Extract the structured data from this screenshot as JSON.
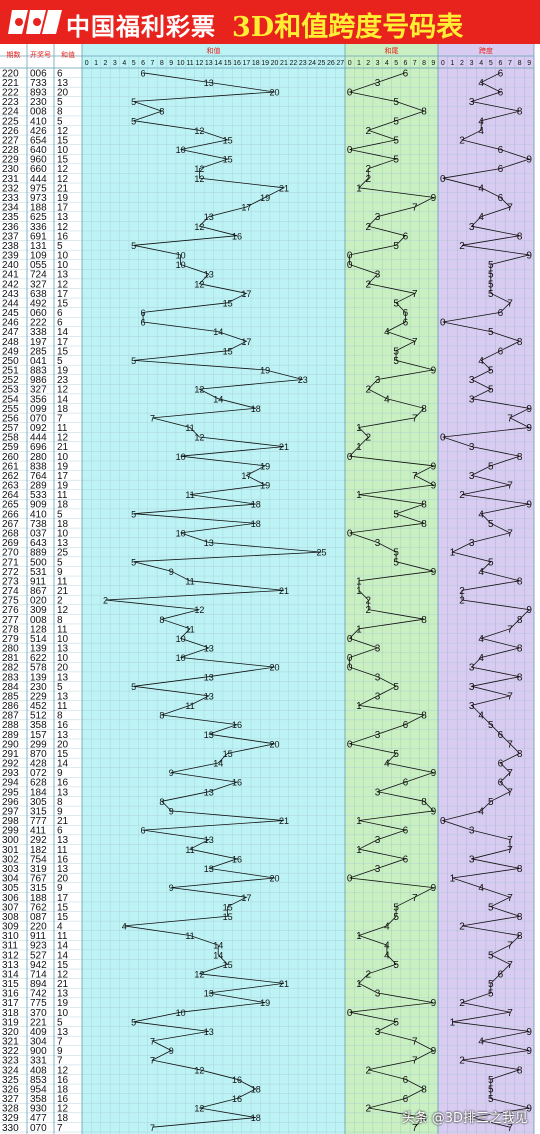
{
  "header": {
    "brand": "中国福利彩票",
    "title": "3D和值跨度号码表"
  },
  "columns": {
    "period": "期数",
    "number": "开奖号",
    "sum": "和值",
    "sum_zone": "和值",
    "tail_zone": "和尾",
    "span_zone": "跨度"
  },
  "watermark": "头条 @3D排三之我见",
  "colors": {
    "header_bg": "#e8231d",
    "title_yellow": "#ffee33",
    "sum_zone_bg": "#bdf3f5",
    "tail_zone_bg": "#c9efc3",
    "span_zone_bg": "#d8ccf0",
    "left_bg": "#ffffff",
    "red": "#e8201a",
    "blue": "#1533d6",
    "black": "#111111"
  },
  "chart_data": {
    "type": "table",
    "sum_axis": [
      0,
      27
    ],
    "tail_axis": [
      0,
      9
    ],
    "span_axis": [
      0,
      9
    ],
    "rows": [
      {
        "period": "220",
        "number": "006",
        "sum": 6,
        "tail": 6,
        "span": 6
      },
      {
        "period": "221",
        "number": "733",
        "sum": 13,
        "tail": 3,
        "span": 4
      },
      {
        "period": "222",
        "number": "893",
        "sum": 20,
        "tail": 0,
        "span": 6
      },
      {
        "period": "223",
        "number": "230",
        "sum": 5,
        "tail": 5,
        "span": 3
      },
      {
        "period": "224",
        "number": "008",
        "sum": 8,
        "tail": 8,
        "span": 8
      },
      {
        "period": "225",
        "number": "410",
        "sum": 5,
        "tail": 5,
        "span": 4
      },
      {
        "period": "226",
        "number": "426",
        "sum": 12,
        "tail": 2,
        "span": 4
      },
      {
        "period": "227",
        "number": "654",
        "sum": 15,
        "tail": 5,
        "span": 2
      },
      {
        "period": "228",
        "number": "640",
        "sum": 10,
        "tail": 0,
        "span": 6
      },
      {
        "period": "229",
        "number": "960",
        "sum": 15,
        "tail": 5,
        "span": 9
      },
      {
        "period": "230",
        "number": "660",
        "sum": 12,
        "tail": 2,
        "span": 6
      },
      {
        "period": "231",
        "number": "444",
        "sum": 12,
        "tail": 2,
        "span": 0
      },
      {
        "period": "232",
        "number": "975",
        "sum": 21,
        "tail": 1,
        "span": 4
      },
      {
        "period": "233",
        "number": "973",
        "sum": 19,
        "tail": 9,
        "span": 6
      },
      {
        "period": "234",
        "number": "188",
        "sum": 17,
        "tail": 7,
        "span": 7
      },
      {
        "period": "235",
        "number": "625",
        "sum": 13,
        "tail": 3,
        "span": 4
      },
      {
        "period": "236",
        "number": "336",
        "sum": 12,
        "tail": 2,
        "span": 3
      },
      {
        "period": "237",
        "number": "691",
        "sum": 16,
        "tail": 6,
        "span": 8
      },
      {
        "period": "238",
        "number": "131",
        "sum": 5,
        "tail": 5,
        "span": 2
      },
      {
        "period": "239",
        "number": "109",
        "sum": 10,
        "tail": 0,
        "span": 9
      },
      {
        "period": "240",
        "number": "055",
        "sum": 10,
        "tail": 0,
        "span": 5
      },
      {
        "period": "241",
        "number": "724",
        "sum": 13,
        "tail": 3,
        "span": 5
      },
      {
        "period": "242",
        "number": "327",
        "sum": 12,
        "tail": 2,
        "span": 5
      },
      {
        "period": "243",
        "number": "638",
        "sum": 17,
        "tail": 7,
        "span": 5
      },
      {
        "period": "244",
        "number": "492",
        "sum": 15,
        "tail": 5,
        "span": 7
      },
      {
        "period": "245",
        "number": "060",
        "sum": 6,
        "tail": 6,
        "span": 6
      },
      {
        "period": "246",
        "number": "222",
        "sum": 6,
        "tail": 6,
        "span": 0
      },
      {
        "period": "247",
        "number": "338",
        "sum": 14,
        "tail": 4,
        "span": 5
      },
      {
        "period": "248",
        "number": "197",
        "sum": 17,
        "tail": 7,
        "span": 8
      },
      {
        "period": "249",
        "number": "285",
        "sum": 15,
        "tail": 5,
        "span": 6
      },
      {
        "period": "250",
        "number": "041",
        "sum": 5,
        "tail": 5,
        "span": 4
      },
      {
        "period": "251",
        "number": "883",
        "sum": 19,
        "tail": 9,
        "span": 5
      },
      {
        "period": "252",
        "number": "986",
        "sum": 23,
        "tail": 3,
        "span": 3
      },
      {
        "period": "253",
        "number": "327",
        "sum": 12,
        "tail": 2,
        "span": 5
      },
      {
        "period": "254",
        "number": "356",
        "sum": 14,
        "tail": 4,
        "span": 3
      },
      {
        "period": "255",
        "number": "099",
        "sum": 18,
        "tail": 8,
        "span": 9
      },
      {
        "period": "256",
        "number": "070",
        "sum": 7,
        "tail": 7,
        "span": 7
      },
      {
        "period": "257",
        "number": "092",
        "sum": 11,
        "tail": 1,
        "span": 9
      },
      {
        "period": "258",
        "number": "444",
        "sum": 12,
        "tail": 2,
        "span": 0
      },
      {
        "period": "259",
        "number": "696",
        "sum": 21,
        "tail": 1,
        "span": 3
      },
      {
        "period": "260",
        "number": "280",
        "sum": 10,
        "tail": 0,
        "span": 8
      },
      {
        "period": "261",
        "number": "838",
        "sum": 19,
        "tail": 9,
        "span": 5
      },
      {
        "period": "262",
        "number": "764",
        "sum": 17,
        "tail": 7,
        "span": 3
      },
      {
        "period": "263",
        "number": "289",
        "sum": 19,
        "tail": 9,
        "span": 7
      },
      {
        "period": "264",
        "number": "533",
        "sum": 11,
        "tail": 1,
        "span": 2
      },
      {
        "period": "265",
        "number": "909",
        "sum": 18,
        "tail": 8,
        "span": 9
      },
      {
        "period": "266",
        "number": "410",
        "sum": 5,
        "tail": 5,
        "span": 4
      },
      {
        "period": "267",
        "number": "738",
        "sum": 18,
        "tail": 8,
        "span": 5
      },
      {
        "period": "268",
        "number": "037",
        "sum": 10,
        "tail": 0,
        "span": 7
      },
      {
        "period": "269",
        "number": "643",
        "sum": 13,
        "tail": 3,
        "span": 3
      },
      {
        "period": "270",
        "number": "889",
        "sum": 25,
        "tail": 5,
        "span": 1
      },
      {
        "period": "271",
        "number": "500",
        "sum": 5,
        "tail": 5,
        "span": 5
      },
      {
        "period": "272",
        "number": "531",
        "sum": 9,
        "tail": 9,
        "span": 4
      },
      {
        "period": "273",
        "number": "911",
        "sum": 11,
        "tail": 1,
        "span": 8
      },
      {
        "period": "274",
        "number": "867",
        "sum": 21,
        "tail": 1,
        "span": 2
      },
      {
        "period": "275",
        "number": "020",
        "sum": 2,
        "tail": 2,
        "span": 2
      },
      {
        "period": "276",
        "number": "309",
        "sum": 12,
        "tail": 2,
        "span": 9
      },
      {
        "period": "277",
        "number": "008",
        "sum": 8,
        "tail": 8,
        "span": 8
      },
      {
        "period": "278",
        "number": "128",
        "sum": 11,
        "tail": 1,
        "span": 7
      },
      {
        "period": "279",
        "number": "514",
        "sum": 10,
        "tail": 0,
        "span": 4
      },
      {
        "period": "280",
        "number": "139",
        "sum": 13,
        "tail": 3,
        "span": 8
      },
      {
        "period": "281",
        "number": "622",
        "sum": 10,
        "tail": 0,
        "span": 4
      },
      {
        "period": "282",
        "number": "578",
        "sum": 20,
        "tail": 0,
        "span": 3
      },
      {
        "period": "283",
        "number": "139",
        "sum": 13,
        "tail": 3,
        "span": 8
      },
      {
        "period": "284",
        "number": "230",
        "sum": 5,
        "tail": 5,
        "span": 3
      },
      {
        "period": "285",
        "number": "229",
        "sum": 13,
        "tail": 3,
        "span": 7
      },
      {
        "period": "286",
        "number": "452",
        "sum": 11,
        "tail": 1,
        "span": 3
      },
      {
        "period": "287",
        "number": "512",
        "sum": 8,
        "tail": 8,
        "span": 4
      },
      {
        "period": "288",
        "number": "358",
        "sum": 16,
        "tail": 6,
        "span": 5
      },
      {
        "period": "289",
        "number": "157",
        "sum": 13,
        "tail": 3,
        "span": 6
      },
      {
        "period": "290",
        "number": "299",
        "sum": 20,
        "tail": 0,
        "span": 7
      },
      {
        "period": "291",
        "number": "870",
        "sum": 15,
        "tail": 5,
        "span": 8
      },
      {
        "period": "292",
        "number": "428",
        "sum": 14,
        "tail": 4,
        "span": 6
      },
      {
        "period": "293",
        "number": "072",
        "sum": 9,
        "tail": 9,
        "span": 7
      },
      {
        "period": "294",
        "number": "628",
        "sum": 16,
        "tail": 6,
        "span": 6
      },
      {
        "period": "295",
        "number": "184",
        "sum": 13,
        "tail": 3,
        "span": 7
      },
      {
        "period": "296",
        "number": "305",
        "sum": 8,
        "tail": 8,
        "span": 5
      },
      {
        "period": "297",
        "number": "315",
        "sum": 9,
        "tail": 9,
        "span": 4
      },
      {
        "period": "298",
        "number": "777",
        "sum": 21,
        "tail": 1,
        "span": 0
      },
      {
        "period": "299",
        "number": "411",
        "sum": 6,
        "tail": 6,
        "span": 3
      },
      {
        "period": "300",
        "number": "292",
        "sum": 13,
        "tail": 3,
        "span": 7
      },
      {
        "period": "301",
        "number": "182",
        "sum": 11,
        "tail": 1,
        "span": 7
      },
      {
        "period": "302",
        "number": "754",
        "sum": 16,
        "tail": 6,
        "span": 3
      },
      {
        "period": "303",
        "number": "319",
        "sum": 13,
        "tail": 3,
        "span": 8
      },
      {
        "period": "304",
        "number": "767",
        "sum": 20,
        "tail": 0,
        "span": 1
      },
      {
        "period": "305",
        "number": "315",
        "sum": 9,
        "tail": 9,
        "span": 4
      },
      {
        "period": "306",
        "number": "188",
        "sum": 17,
        "tail": 7,
        "span": 7
      },
      {
        "period": "307",
        "number": "762",
        "sum": 15,
        "tail": 5,
        "span": 5
      },
      {
        "period": "308",
        "number": "087",
        "sum": 15,
        "tail": 5,
        "span": 8
      },
      {
        "period": "309",
        "number": "220",
        "sum": 4,
        "tail": 4,
        "span": 2
      },
      {
        "period": "310",
        "number": "911",
        "sum": 11,
        "tail": 1,
        "span": 8
      },
      {
        "period": "311",
        "number": "923",
        "sum": 14,
        "tail": 4,
        "span": 7
      },
      {
        "period": "312",
        "number": "527",
        "sum": 14,
        "tail": 4,
        "span": 5
      },
      {
        "period": "313",
        "number": "942",
        "sum": 15,
        "tail": 5,
        "span": 7
      },
      {
        "period": "314",
        "number": "714",
        "sum": 12,
        "tail": 2,
        "span": 6
      },
      {
        "period": "315",
        "number": "894",
        "sum": 21,
        "tail": 1,
        "span": 5
      },
      {
        "period": "316",
        "number": "742",
        "sum": 13,
        "tail": 3,
        "span": 5
      },
      {
        "period": "317",
        "number": "775",
        "sum": 19,
        "tail": 9,
        "span": 2
      },
      {
        "period": "318",
        "number": "370",
        "sum": 10,
        "tail": 0,
        "span": 7
      },
      {
        "period": "319",
        "number": "221",
        "sum": 5,
        "tail": 5,
        "span": 1
      },
      {
        "period": "320",
        "number": "409",
        "sum": 13,
        "tail": 3,
        "span": 9
      },
      {
        "period": "321",
        "number": "304",
        "sum": 7,
        "tail": 7,
        "span": 4
      },
      {
        "period": "322",
        "number": "900",
        "sum": 9,
        "tail": 9,
        "span": 9
      },
      {
        "period": "323",
        "number": "331",
        "sum": 7,
        "tail": 7,
        "span": 2
      },
      {
        "period": "324",
        "number": "408",
        "sum": 12,
        "tail": 2,
        "span": 8
      },
      {
        "period": "325",
        "number": "853",
        "sum": 16,
        "tail": 6,
        "span": 5
      },
      {
        "period": "326",
        "number": "954",
        "sum": 18,
        "tail": 8,
        "span": 5
      },
      {
        "period": "327",
        "number": "358",
        "sum": 16,
        "tail": 6,
        "span": 5
      },
      {
        "period": "328",
        "number": "930",
        "sum": 12,
        "tail": 2,
        "span": 9
      },
      {
        "period": "329",
        "number": "477",
        "sum": 18,
        "tail": 8,
        "span": 3
      },
      {
        "period": "330",
        "number": "070",
        "sum": 7,
        "tail": 7,
        "span": 7
      }
    ]
  }
}
